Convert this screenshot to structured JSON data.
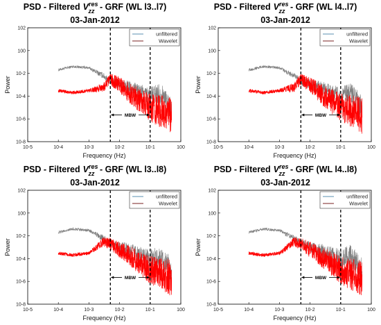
{
  "chart_data": [
    {
      "type": "line",
      "title_prefix": "PSD - Filtered",
      "title_var": "V",
      "title_sup": "res",
      "title_sub": "zz",
      "title_suffix": " - GRF (WL l3..l7)",
      "date": "03-Jan-2012",
      "xlabel": "Frequency (Hz)",
      "ylabel": "Power",
      "xscale": "log",
      "yscale": "log",
      "xlim": [
        1e-05,
        1
      ],
      "ylim": [
        1e-08,
        100
      ],
      "x_ticks": [
        "10-5",
        "10-4",
        "10-3",
        "10-2",
        "10-1",
        "100"
      ],
      "y_ticks": [
        "10-8",
        "10-6",
        "10-4",
        "10-2",
        "100",
        "102"
      ],
      "legend": [
        "unfiltered",
        "Wavelet"
      ],
      "legend_position": "top-right",
      "colors": {
        "unfiltered": "#808080",
        "wavelet": "#ff0000",
        "legend_unfiltered": "#5a8fb0",
        "legend_wavelet": "#7a2020"
      },
      "band_label": "MBW",
      "band_lines_x": [
        0.005,
        0.1
      ],
      "series": [
        {
          "name": "unfiltered",
          "x": [
            0.0001,
            0.0003,
            0.001,
            0.003,
            0.005,
            0.02,
            0.1,
            0.2,
            0.5
          ],
          "y": [
            0.02,
            0.04,
            0.03,
            0.006,
            0.002,
            0.0006,
            0.0001,
            0.0002,
            1e-05
          ]
        },
        {
          "name": "Wavelet",
          "x": [
            0.0001,
            0.0003,
            0.001,
            0.003,
            0.005,
            0.01,
            0.02,
            0.1,
            0.2,
            0.5
          ],
          "y": [
            0.0003,
            0.0002,
            0.0003,
            0.0006,
            0.003,
            0.001,
            0.0002,
            1e-05,
            5e-06,
            2e-06
          ]
        }
      ]
    },
    {
      "type": "line",
      "title_prefix": "PSD - Filtered",
      "title_var": "V",
      "title_sup": "res",
      "title_sub": "zz",
      "title_suffix": " - GRF (WL l4..l7)",
      "date": "03-Jan-2012",
      "xlabel": "Frequency (Hz)",
      "ylabel": "Power",
      "xscale": "log",
      "yscale": "log",
      "xlim": [
        1e-05,
        1
      ],
      "ylim": [
        1e-08,
        100
      ],
      "x_ticks": [
        "10-5",
        "10-4",
        "10-3",
        "10-2",
        "10-1",
        "100"
      ],
      "y_ticks": [
        "10-8",
        "10-6",
        "10-4",
        "10-2",
        "100",
        "102"
      ],
      "legend": [
        "unfiltered",
        "Wavelet"
      ],
      "legend_position": "top-right",
      "colors": {
        "unfiltered": "#808080",
        "wavelet": "#ff0000",
        "legend_unfiltered": "#5a8fb0",
        "legend_wavelet": "#7a2020"
      },
      "band_label": "MBW",
      "band_lines_x": [
        0.005,
        0.1
      ],
      "series": [
        {
          "name": "unfiltered",
          "x": [
            0.0001,
            0.0003,
            0.001,
            0.003,
            0.005,
            0.02,
            0.1,
            0.2,
            0.5
          ],
          "y": [
            0.02,
            0.04,
            0.03,
            0.006,
            0.002,
            0.0006,
            0.0001,
            0.0002,
            1e-05
          ]
        },
        {
          "name": "Wavelet",
          "x": [
            0.0001,
            0.0003,
            0.001,
            0.003,
            0.005,
            0.01,
            0.02,
            0.1,
            0.2,
            0.5
          ],
          "y": [
            0.0003,
            0.0002,
            0.0003,
            0.0006,
            0.003,
            0.001,
            0.0002,
            1e-05,
            5e-06,
            2e-06
          ]
        }
      ]
    },
    {
      "type": "line",
      "title_prefix": "PSD - Filtered",
      "title_var": "V",
      "title_sup": "res",
      "title_sub": "zz",
      "title_suffix": " - GRF (WL l3..l8)",
      "date": "03-Jan-2012",
      "xlabel": "Frequency (Hz)",
      "ylabel": "Power",
      "xscale": "log",
      "yscale": "log",
      "xlim": [
        1e-05,
        1
      ],
      "ylim": [
        1e-08,
        100
      ],
      "x_ticks": [
        "10-5",
        "10-4",
        "10-3",
        "10-2",
        "10-1",
        "100"
      ],
      "y_ticks": [
        "10-8",
        "10-6",
        "10-4",
        "10-2",
        "100",
        "102"
      ],
      "legend": [
        "unfiltered",
        "Wavelet"
      ],
      "legend_position": "top-right",
      "colors": {
        "unfiltered": "#808080",
        "wavelet": "#ff0000",
        "legend_unfiltered": "#5a8fb0",
        "legend_wavelet": "#7a2020"
      },
      "band_label": "MBW",
      "band_lines_x": [
        0.005,
        0.1
      ],
      "series": [
        {
          "name": "unfiltered",
          "x": [
            0.0001,
            0.0003,
            0.001,
            0.003,
            0.005,
            0.02,
            0.1,
            0.2,
            0.5
          ],
          "y": [
            0.02,
            0.04,
            0.03,
            0.006,
            0.002,
            0.0006,
            0.0001,
            0.0002,
            1e-05
          ]
        },
        {
          "name": "Wavelet",
          "x": [
            0.0001,
            0.0003,
            0.001,
            0.003,
            0.005,
            0.01,
            0.02,
            0.1,
            0.2,
            0.5
          ],
          "y": [
            0.0003,
            0.0002,
            0.0003,
            0.003,
            0.002,
            0.0006,
            0.0002,
            1e-05,
            5e-06,
            2e-06
          ]
        }
      ]
    },
    {
      "type": "line",
      "title_prefix": "PSD - Filtered",
      "title_var": "V",
      "title_sup": "res",
      "title_sub": "zz",
      "title_suffix": " - GRF (WL l4..l8)",
      "date": "03-Jan-2012",
      "xlabel": "Frequency (Hz)",
      "ylabel": "Power",
      "xscale": "log",
      "yscale": "log",
      "xlim": [
        1e-05,
        1
      ],
      "ylim": [
        1e-08,
        100
      ],
      "x_ticks": [
        "10-5",
        "10-4",
        "10-3",
        "10-2",
        "10-1",
        "100"
      ],
      "y_ticks": [
        "10-8",
        "10-6",
        "10-4",
        "10-2",
        "100",
        "102"
      ],
      "legend": [
        "unfiltered",
        "Wavelet"
      ],
      "legend_position": "top-right",
      "colors": {
        "unfiltered": "#808080",
        "wavelet": "#ff0000",
        "legend_unfiltered": "#5a8fb0",
        "legend_wavelet": "#7a2020"
      },
      "band_label": "MBW",
      "band_lines_x": [
        0.005,
        0.1
      ],
      "series": [
        {
          "name": "unfiltered",
          "x": [
            0.0001,
            0.0003,
            0.001,
            0.003,
            0.005,
            0.02,
            0.1,
            0.2,
            0.5
          ],
          "y": [
            0.02,
            0.04,
            0.03,
            0.006,
            0.002,
            0.0006,
            0.0001,
            0.0002,
            1e-05
          ]
        },
        {
          "name": "Wavelet",
          "x": [
            0.0001,
            0.0003,
            0.001,
            0.003,
            0.005,
            0.01,
            0.02,
            0.1,
            0.2,
            0.5
          ],
          "y": [
            0.0003,
            0.0002,
            0.0003,
            0.003,
            0.002,
            0.0006,
            0.0002,
            1e-05,
            5e-06,
            2e-06
          ]
        }
      ]
    }
  ]
}
